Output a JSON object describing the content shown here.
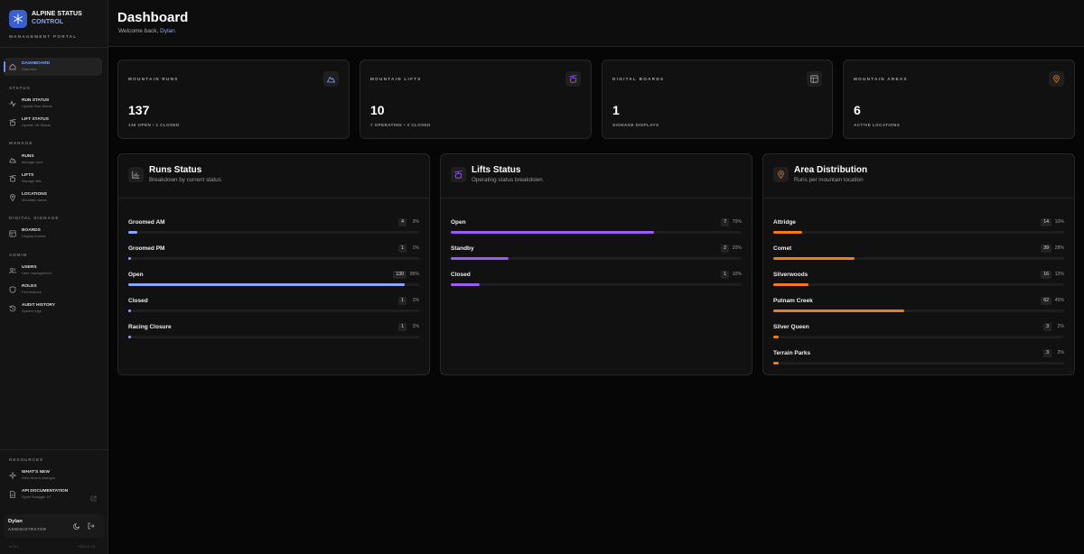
{
  "brand": {
    "line1": "ALPINE STATUS",
    "line2": "CONTROL",
    "portal": "MANAGEMENT PORTAL",
    "logo_icon": "snowflake-icon"
  },
  "nav": {
    "active": {
      "label": "DASHBOARD",
      "sub": "Overview"
    },
    "sections": {
      "status": "STATUS",
      "manage": "MANAGE",
      "signage": "DIGITAL SIGNAGE",
      "admin": "ADMIN",
      "resources": "RESOURCES"
    },
    "items": {
      "run_status": {
        "label": "RUN STATUS",
        "sub": "Update Run Status"
      },
      "lift_status": {
        "label": "LIFT STATUS",
        "sub": "Update Lift Status"
      },
      "runs": {
        "label": "RUNS",
        "sub": "Manage runs"
      },
      "lifts": {
        "label": "LIFTS",
        "sub": "Manage lifts"
      },
      "locations": {
        "label": "LOCATIONS",
        "sub": "Mountain areas"
      },
      "boards": {
        "label": "BOARDS",
        "sub": "Display boards"
      },
      "users": {
        "label": "USERS",
        "sub": "User management"
      },
      "roles": {
        "label": "ROLES",
        "sub": "Permissions"
      },
      "audit": {
        "label": "AUDIT HISTORY",
        "sub": "System logs"
      },
      "whats_new": {
        "label": "WHAT'S NEW",
        "sub": "View recent changes"
      },
      "api_docs": {
        "label": "API DOCUMENTATION",
        "sub": "Open Swagger UI"
      }
    }
  },
  "user": {
    "name": "Dylan",
    "role": "ADMINISTRATOR"
  },
  "footer": {
    "version": "v1.0.0",
    "build": "2025.01.13"
  },
  "header": {
    "title": "Dashboard",
    "welcome": "Welcome back,",
    "name": "Dylan"
  },
  "stats": [
    {
      "label": "MOUNTAIN RUNS",
      "value": "137",
      "sub": "136 OPEN • 1 CLOSED",
      "icon": "mountain-icon"
    },
    {
      "label": "MOUNTAIN LIFTS",
      "value": "10",
      "sub": "7 OPERATING • 3 CLOSED",
      "icon": "gondola-icon"
    },
    {
      "label": "DIGITAL BOARDS",
      "value": "1",
      "sub": "SIGNAGE DISPLAYS",
      "icon": "board-icon"
    },
    {
      "label": "MOUNTAIN AREAS",
      "value": "6",
      "sub": "ACTIVE LOCATIONS",
      "icon": "map-pin-icon"
    }
  ],
  "panels": {
    "runs": {
      "title": "Runs Status",
      "sub": "Breakdown by current status",
      "color": "#8aa6ff",
      "rows": [
        {
          "label": "Groomed AM",
          "count": "4",
          "pct": "3%",
          "value": 3
        },
        {
          "label": "Groomed PM",
          "count": "1",
          "pct": "1%",
          "value": 1
        },
        {
          "label": "Open",
          "count": "130",
          "pct": "95%",
          "value": 95
        },
        {
          "label": "Closed",
          "count": "1",
          "pct": "1%",
          "value": 1
        },
        {
          "label": "Racing Closure",
          "count": "1",
          "pct": "1%",
          "value": 1
        }
      ]
    },
    "lifts": {
      "title": "Lifts Status",
      "sub": "Operating status breakdown",
      "color": "#9b5cf6",
      "rows": [
        {
          "label": "Open",
          "count": "7",
          "pct": "70%",
          "value": 70
        },
        {
          "label": "Standby",
          "count": "2",
          "pct": "20%",
          "value": 20
        },
        {
          "label": "Closed",
          "count": "1",
          "pct": "10%",
          "value": 10
        }
      ]
    },
    "areas": {
      "title": "Area Distribution",
      "sub": "Runs per mountain location",
      "color": "#f07c13",
      "rows": [
        {
          "label": "Attridge",
          "count": "14",
          "pct": "10%",
          "value": 10
        },
        {
          "label": "Comet",
          "count": "39",
          "pct": "28%",
          "value": 28
        },
        {
          "label": "Silverwoods",
          "count": "16",
          "pct": "12%",
          "value": 12
        },
        {
          "label": "Putnam Creek",
          "count": "62",
          "pct": "45%",
          "value": 45
        },
        {
          "label": "Silver Queen",
          "count": "3",
          "pct": "2%",
          "value": 2
        },
        {
          "label": "Terrain Parks",
          "count": "3",
          "pct": "2%",
          "value": 2
        }
      ]
    }
  }
}
